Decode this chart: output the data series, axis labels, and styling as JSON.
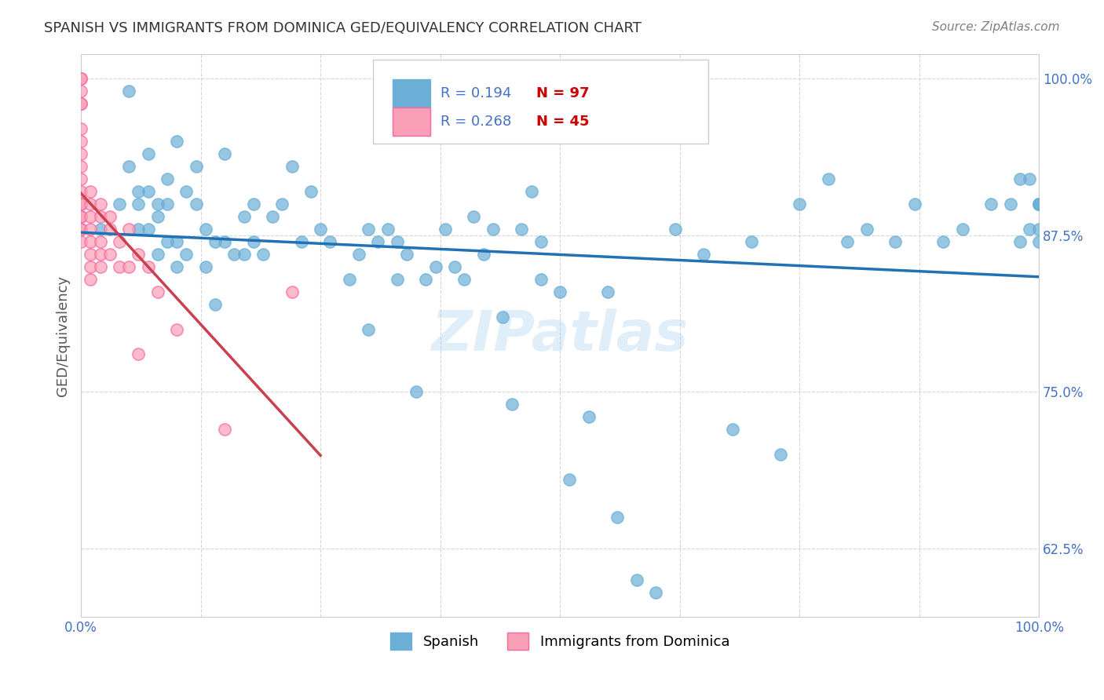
{
  "title": "SPANISH VS IMMIGRANTS FROM DOMINICA GED/EQUIVALENCY CORRELATION CHART",
  "source": "Source: ZipAtlas.com",
  "xlabel": "",
  "ylabel": "GED/Equivalency",
  "watermark": "ZIPatlas",
  "blue_R": 0.194,
  "blue_N": 97,
  "pink_R": 0.268,
  "pink_N": 45,
  "blue_label": "Spanish",
  "pink_label": "Immigrants from Dominica",
  "blue_color": "#6baed6",
  "pink_color": "#fa9fb5",
  "blue_edge": "#6baed6",
  "pink_edge": "#f768a1",
  "blue_line_color": "#2171b5",
  "pink_line_color": "#c9414e",
  "xlim": [
    0.0,
    1.0
  ],
  "ylim": [
    0.57,
    1.02
  ],
  "yticks": [
    0.625,
    0.75,
    0.875,
    1.0
  ],
  "ytick_labels": [
    "62.5%",
    "75.0%",
    "87.5%",
    "100.0%"
  ],
  "xticks": [
    0.0,
    0.125,
    0.25,
    0.375,
    0.5,
    0.625,
    0.75,
    0.875,
    1.0
  ],
  "xtick_labels": [
    "0.0%",
    "",
    "",
    "",
    "",
    "",
    "",
    "",
    "100.0%"
  ],
  "blue_x": [
    0.02,
    0.04,
    0.05,
    0.05,
    0.06,
    0.06,
    0.06,
    0.07,
    0.07,
    0.07,
    0.08,
    0.08,
    0.08,
    0.09,
    0.09,
    0.09,
    0.1,
    0.1,
    0.1,
    0.11,
    0.11,
    0.12,
    0.12,
    0.13,
    0.13,
    0.14,
    0.14,
    0.15,
    0.15,
    0.16,
    0.17,
    0.17,
    0.18,
    0.18,
    0.19,
    0.2,
    0.21,
    0.22,
    0.23,
    0.24,
    0.25,
    0.26,
    0.28,
    0.29,
    0.3,
    0.3,
    0.31,
    0.32,
    0.33,
    0.33,
    0.34,
    0.35,
    0.36,
    0.37,
    0.38,
    0.39,
    0.4,
    0.41,
    0.42,
    0.43,
    0.44,
    0.45,
    0.46,
    0.47,
    0.48,
    0.48,
    0.5,
    0.51,
    0.53,
    0.55,
    0.56,
    0.58,
    0.6,
    0.62,
    0.65,
    0.68,
    0.7,
    0.73,
    0.75,
    0.78,
    0.8,
    0.82,
    0.85,
    0.87,
    0.9,
    0.92,
    0.95,
    0.97,
    0.98,
    0.99,
    1.0,
    1.0,
    1.0,
    1.0,
    1.0,
    0.98,
    0.99
  ],
  "blue_y": [
    0.88,
    0.9,
    0.99,
    0.93,
    0.91,
    0.9,
    0.88,
    0.94,
    0.91,
    0.88,
    0.9,
    0.89,
    0.86,
    0.92,
    0.9,
    0.87,
    0.95,
    0.87,
    0.85,
    0.91,
    0.86,
    0.93,
    0.9,
    0.88,
    0.85,
    0.87,
    0.82,
    0.94,
    0.87,
    0.86,
    0.89,
    0.86,
    0.9,
    0.87,
    0.86,
    0.89,
    0.9,
    0.93,
    0.87,
    0.91,
    0.88,
    0.87,
    0.84,
    0.86,
    0.88,
    0.8,
    0.87,
    0.88,
    0.87,
    0.84,
    0.86,
    0.75,
    0.84,
    0.85,
    0.88,
    0.85,
    0.84,
    0.89,
    0.86,
    0.88,
    0.81,
    0.74,
    0.88,
    0.91,
    0.87,
    0.84,
    0.83,
    0.68,
    0.73,
    0.83,
    0.65,
    0.6,
    0.59,
    0.88,
    0.86,
    0.72,
    0.87,
    0.7,
    0.9,
    0.92,
    0.87,
    0.88,
    0.87,
    0.9,
    0.87,
    0.88,
    0.9,
    0.9,
    0.87,
    0.88,
    0.9,
    0.9,
    0.88,
    0.87,
    0.9,
    0.92,
    0.92
  ],
  "pink_x": [
    0.0,
    0.0,
    0.0,
    0.0,
    0.0,
    0.0,
    0.0,
    0.0,
    0.0,
    0.0,
    0.0,
    0.0,
    0.0,
    0.0,
    0.0,
    0.0,
    0.0,
    0.0,
    0.01,
    0.01,
    0.01,
    0.01,
    0.01,
    0.01,
    0.01,
    0.01,
    0.02,
    0.02,
    0.02,
    0.02,
    0.02,
    0.03,
    0.03,
    0.03,
    0.04,
    0.04,
    0.05,
    0.05,
    0.06,
    0.06,
    0.07,
    0.08,
    0.1,
    0.15,
    0.22
  ],
  "pink_y": [
    1.0,
    1.0,
    0.99,
    0.98,
    0.98,
    0.96,
    0.95,
    0.94,
    0.93,
    0.92,
    0.91,
    0.9,
    0.9,
    0.89,
    0.89,
    0.88,
    0.88,
    0.87,
    0.91,
    0.9,
    0.89,
    0.88,
    0.87,
    0.86,
    0.85,
    0.84,
    0.9,
    0.89,
    0.87,
    0.86,
    0.85,
    0.89,
    0.88,
    0.86,
    0.87,
    0.85,
    0.88,
    0.85,
    0.86,
    0.78,
    0.85,
    0.83,
    0.8,
    0.72,
    0.83
  ],
  "background_color": "#ffffff",
  "grid_color": "#cccccc",
  "title_color": "#333333",
  "axis_label_color": "#555555",
  "tick_color": "#4472c4",
  "legend_R_color": "#4472c4",
  "legend_N_color": "#cc0000"
}
